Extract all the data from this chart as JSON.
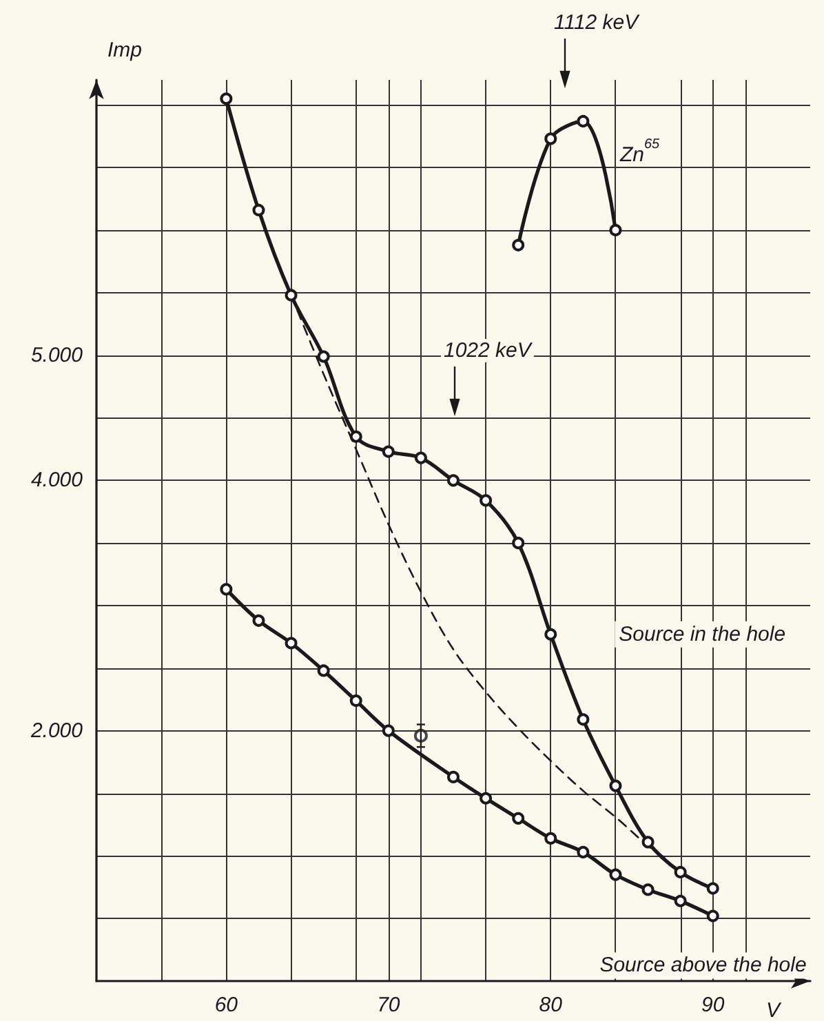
{
  "chart_data": {
    "type": "line",
    "xlabel": "V",
    "ylabel": "Imp",
    "xlim": [
      52,
      96
    ],
    "ylim": [
      0,
      7200
    ],
    "xticks": [
      {
        "value": 56,
        "label": null
      },
      {
        "value": 60,
        "label": "60"
      },
      {
        "value": 64,
        "label": null
      },
      {
        "value": 68,
        "label": null
      },
      {
        "value": 70,
        "label": "70"
      },
      {
        "value": 72,
        "label": null
      },
      {
        "value": 76,
        "label": null
      },
      {
        "value": 80,
        "label": "80"
      },
      {
        "value": 84,
        "label": null
      },
      {
        "value": 88,
        "label": null
      },
      {
        "value": 90,
        "label": "90"
      },
      {
        "value": 92,
        "label": null
      }
    ],
    "yticks": [
      {
        "value": 500,
        "label": null
      },
      {
        "value": 1000,
        "label": null
      },
      {
        "value": 1500,
        "label": null
      },
      {
        "value": 2000,
        "label": "2.000"
      },
      {
        "value": 2500,
        "label": null
      },
      {
        "value": 3000,
        "label": null
      },
      {
        "value": 3500,
        "label": null
      },
      {
        "value": 4000,
        "label": "4.000"
      },
      {
        "value": 4500,
        "label": null
      },
      {
        "value": 5000,
        "label": "5.000"
      },
      {
        "value": 5500,
        "label": null
      },
      {
        "value": 6000,
        "label": null
      },
      {
        "value": 6500,
        "label": null
      },
      {
        "value": 7000,
        "label": null
      }
    ],
    "grid": true,
    "marker": "circle",
    "line_style": "solid",
    "series": [
      {
        "name": "Source in the hole",
        "color": "#1a1a1a",
        "x": [
          60,
          62,
          64,
          66,
          68,
          70,
          72,
          74,
          76,
          78,
          80,
          82,
          84,
          86,
          88,
          90
        ],
        "values": [
          7050,
          6160,
          5480,
          4990,
          4350,
          4230,
          4180,
          4000,
          3840,
          3500,
          2770,
          2090,
          1560,
          1110,
          870,
          740
        ]
      },
      {
        "name": "Source above the hole",
        "color": "#1a1a1a",
        "x": [
          60,
          62,
          64,
          66,
          68,
          70,
          74,
          76,
          78,
          80,
          82,
          84,
          86,
          88,
          90
        ],
        "values": [
          3130,
          2880,
          2700,
          2480,
          2240,
          2000,
          1630,
          1460,
          1300,
          1140,
          1030,
          850,
          730,
          640,
          520
        ]
      },
      {
        "type": "scatter",
        "color": "#1a1a1a",
        "x": [
          72
        ],
        "values": [
          1960
        ],
        "errors": [
          90
        ]
      },
      {
        "color": "#1a1a1a",
        "x": [
          78,
          80,
          82,
          84
        ],
        "values": [
          5880,
          6730,
          6870,
          6000
        ]
      },
      {
        "color": "#1a1a1a",
        "marker": "none",
        "line_style": "dashed",
        "x": [
          64,
          66,
          68,
          70,
          72,
          74,
          76,
          78,
          80,
          82,
          84,
          86,
          87
        ],
        "values": [
          5480,
          4850,
          4250,
          3650,
          3110,
          2650,
          2310,
          2020,
          1760,
          1520,
          1310,
          1080,
          990
        ]
      }
    ],
    "annotations": [
      "1112 keV",
      "1022 keV",
      "Zn$^{65}$"
    ]
  }
}
